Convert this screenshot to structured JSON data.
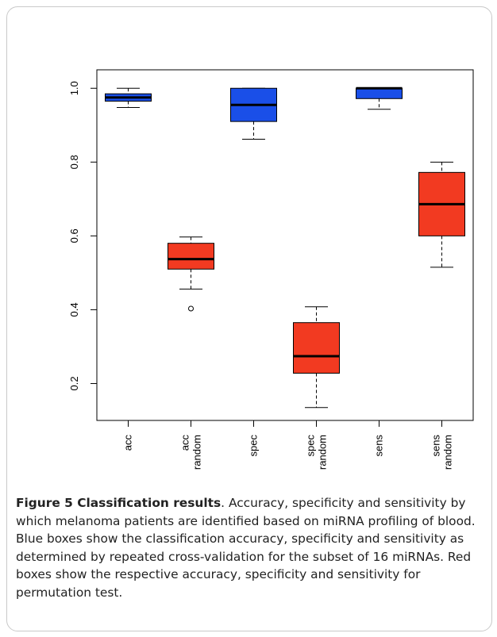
{
  "chart_data": {
    "type": "box",
    "categories": [
      [
        "acc"
      ],
      [
        "acc",
        "random"
      ],
      [
        "spec"
      ],
      [
        "spec",
        "random"
      ],
      [
        "sens"
      ],
      [
        "sens",
        "random"
      ]
    ],
    "ylim": [
      0.1,
      1.05
    ],
    "yticks": [
      "0.2",
      "0.4",
      "0.6",
      "0.8",
      "1.0"
    ],
    "boxes": [
      {
        "min": 0.948,
        "q1": 0.965,
        "median": 0.975,
        "q3": 0.985,
        "max": 1.0,
        "outliers": [],
        "color": "#1a4fe8"
      },
      {
        "min": 0.456,
        "q1": 0.51,
        "median": 0.537,
        "q3": 0.58,
        "max": 0.597,
        "outliers": [
          0.403
        ],
        "color": "#f23a21"
      },
      {
        "min": 0.862,
        "q1": 0.91,
        "median": 0.955,
        "q3": 1.0,
        "max": 1.0,
        "outliers": [],
        "color": "#1a4fe8"
      },
      {
        "min": 0.135,
        "q1": 0.228,
        "median": 0.274,
        "q3": 0.365,
        "max": 0.408,
        "outliers": [],
        "color": "#f23a21"
      },
      {
        "min": 0.943,
        "q1": 0.972,
        "median": 1.0,
        "q3": 1.0,
        "max": 1.0,
        "outliers": [],
        "color": "#1a4fe8"
      },
      {
        "min": 0.515,
        "q1": 0.6,
        "median": 0.686,
        "q3": 0.772,
        "max": 0.8,
        "outliers": [],
        "color": "#f23a21"
      }
    ]
  },
  "caption": {
    "label": "Figure 5 Classification results",
    "text": ". Accuracy, specificity and sensitivity by which melanoma patients are identified based on miRNA profiling of blood. Blue boxes show the classification accuracy, specificity and sensitivity as determined by repeated cross-validation for the subset of 16 miRNAs. Red boxes show the respective accuracy, specificity and sensitivity for permutation test."
  }
}
